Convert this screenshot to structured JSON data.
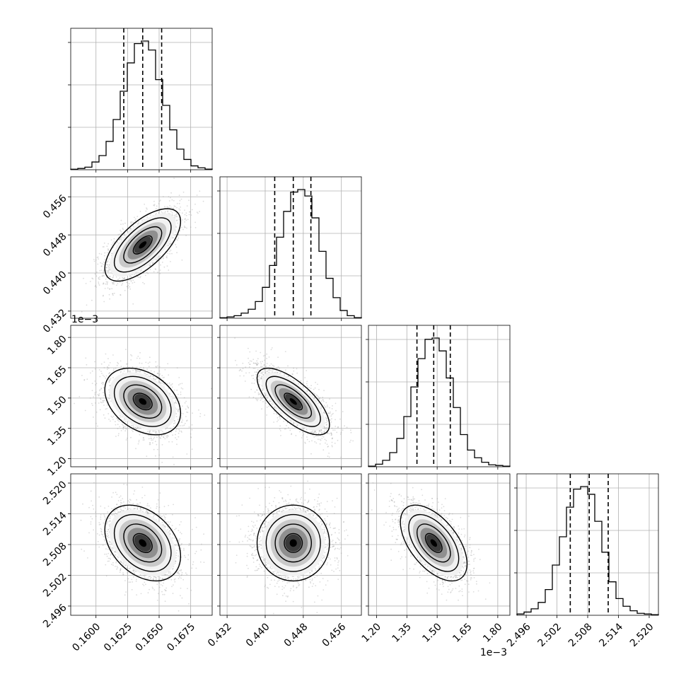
{
  "chart_data": {
    "type": "corner",
    "grid": true,
    "n_params": 4,
    "params": [
      {
        "index": 0,
        "range": [
          0.158,
          0.1692
        ],
        "ticks": [
          0.16,
          0.1625,
          0.165,
          0.1675
        ],
        "tick_labels": [
          "0.1600",
          "0.1625",
          "0.1650",
          "0.1675"
        ],
        "quantiles": [
          0.1622,
          0.1637,
          0.1652
        ],
        "offset_label": ""
      },
      {
        "index": 1,
        "range": [
          0.4305,
          0.4602
        ],
        "ticks": [
          0.432,
          0.44,
          0.448,
          0.456
        ],
        "tick_labels": [
          "0.432",
          "0.440",
          "0.448",
          "0.456"
        ],
        "quantiles": [
          0.442,
          0.4459,
          0.4496
        ],
        "offset_label": ""
      },
      {
        "index": 2,
        "range": [
          1.16,
          1.86
        ],
        "ticks": [
          1.2,
          1.35,
          1.5,
          1.65,
          1.8
        ],
        "tick_labels": [
          "1.20",
          "1.35",
          "1.50",
          "1.65",
          "1.80"
        ],
        "quantiles": [
          1.4,
          1.483,
          1.565
        ],
        "offset_label": "1e−3"
      },
      {
        "index": 3,
        "range": [
          2.4942,
          2.5218
        ],
        "ticks": [
          2.496,
          2.502,
          2.508,
          2.514,
          2.52
        ],
        "tick_labels": [
          "2.496",
          "2.502",
          "2.508",
          "2.514",
          "2.520"
        ],
        "quantiles": [
          2.5046,
          2.5083,
          2.512
        ],
        "offset_label": ""
      }
    ],
    "histograms": [
      [
        0.004,
        0.01,
        0.02,
        0.06,
        0.11,
        0.22,
        0.39,
        0.61,
        0.83,
        0.98,
        1.0,
        0.93,
        0.7,
        0.5,
        0.31,
        0.16,
        0.08,
        0.03,
        0.015,
        0.005
      ],
      [
        0.004,
        0.01,
        0.02,
        0.04,
        0.07,
        0.13,
        0.24,
        0.41,
        0.63,
        0.83,
        0.98,
        1.0,
        0.95,
        0.78,
        0.52,
        0.31,
        0.16,
        0.06,
        0.02,
        0.005
      ],
      [
        0.005,
        0.02,
        0.05,
        0.11,
        0.22,
        0.39,
        0.62,
        0.84,
        0.99,
        1.0,
        0.9,
        0.69,
        0.46,
        0.25,
        0.13,
        0.07,
        0.035,
        0.015,
        0.01,
        0.005
      ],
      [
        0.01,
        0.025,
        0.05,
        0.1,
        0.2,
        0.39,
        0.61,
        0.84,
        0.98,
        1.0,
        0.94,
        0.73,
        0.49,
        0.26,
        0.13,
        0.07,
        0.035,
        0.015,
        0.01,
        0.005
      ]
    ],
    "correlations": [
      {
        "x": 0,
        "y": 1,
        "rho": 0.65
      },
      {
        "x": 0,
        "y": 2,
        "rho": -0.35
      },
      {
        "x": 1,
        "y": 2,
        "rho": -0.7
      },
      {
        "x": 0,
        "y": 3,
        "rho": -0.35
      },
      {
        "x": 1,
        "y": 3,
        "rho": 0.0
      },
      {
        "x": 2,
        "y": 3,
        "rho": -0.55
      }
    ],
    "contour_levels_sigma": [
      0.5,
      1.0,
      1.5,
      2.0
    ]
  },
  "colors": {
    "line": "#000000",
    "grid": "#b0b0b0",
    "scatter": "#9a9a9a"
  }
}
